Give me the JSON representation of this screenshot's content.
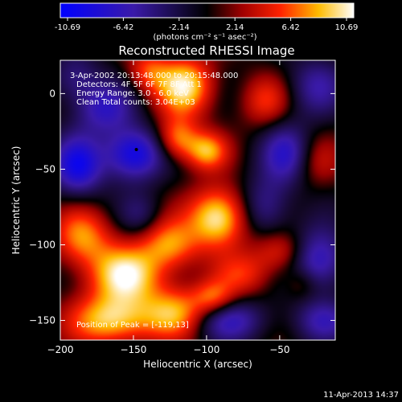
{
  "colorbar": {
    "ticks": [
      "-10.69",
      "-6.42",
      "-2.14",
      "2.14",
      "6.42",
      "10.69"
    ],
    "unit_label": "(photons cm⁻² s⁻¹ asec⁻²)"
  },
  "chart_data": {
    "type": "heatmap",
    "title": "Reconstructed RHESSI Image",
    "xlabel": "Heliocentric X (arcsec)",
    "ylabel": "Heliocentric Y (arcsec)",
    "xlim": [
      -200,
      -12
    ],
    "ylim": [
      -163,
      22
    ],
    "xticks": [
      -200,
      -150,
      -100,
      -50
    ],
    "yticks": [
      0,
      -50,
      -100,
      -150
    ],
    "color_range": [
      -10.69,
      10.69
    ],
    "colormap": "blue-black-red-yellow-white",
    "annotations": [
      "3-Apr-2002 20:13:48.000 to 20:15:48.000",
      "Detectors: 4F 5F 6F 7F 8F Att 1",
      "Energy Range: 3.0 - 6.0 keV",
      "Clean    Total counts: 3.04E+03"
    ],
    "peak_label": "Position of Peak = [-119,13]",
    "peak": [
      -119,
      13
    ],
    "marker": [
      -148,
      -37
    ],
    "blobs": [
      {
        "x": -115,
        "y": 5,
        "sx": 14,
        "sy": 14,
        "a": 9.5
      },
      {
        "x": -120,
        "y": -30,
        "sx": 10,
        "sy": 10,
        "a": 7.0
      },
      {
        "x": -100,
        "y": -38,
        "sx": 10,
        "sy": 9,
        "a": 7.5
      },
      {
        "x": -92,
        "y": -82,
        "sx": 14,
        "sy": 14,
        "a": 10.5
      },
      {
        "x": -125,
        "y": -100,
        "sx": 14,
        "sy": 12,
        "a": 7.0
      },
      {
        "x": -155,
        "y": -120,
        "sx": 18,
        "sy": 14,
        "a": 9.5
      },
      {
        "x": -165,
        "y": -150,
        "sx": 20,
        "sy": 12,
        "a": 9.0
      },
      {
        "x": -120,
        "y": -145,
        "sx": 16,
        "sy": 12,
        "a": 7.5
      },
      {
        "x": -185,
        "y": -95,
        "sx": 14,
        "sy": 14,
        "a": 7.0
      },
      {
        "x": -75,
        "y": -120,
        "sx": 14,
        "sy": 10,
        "a": 4.5
      },
      {
        "x": -95,
        "y": -135,
        "sx": 10,
        "sy": 8,
        "a": 5.5
      },
      {
        "x": -60,
        "y": -5,
        "sx": 12,
        "sy": 12,
        "a": 4.5
      },
      {
        "x": -48,
        "y": -105,
        "sx": 14,
        "sy": 10,
        "a": 5.5
      },
      {
        "x": -25,
        "y": -45,
        "sx": 12,
        "sy": 12,
        "a": 3.0
      },
      {
        "x": -140,
        "y": 15,
        "sx": 10,
        "sy": 10,
        "a": 5.0
      },
      {
        "x": -35,
        "y": -125,
        "sx": 8,
        "sy": 8,
        "a": 3.0
      },
      {
        "x": -150,
        "y": -40,
        "sx": 14,
        "sy": 12,
        "a": -9.5
      },
      {
        "x": -188,
        "y": -48,
        "sx": 12,
        "sy": 14,
        "a": -8.5
      },
      {
        "x": -170,
        "y": -10,
        "sx": 14,
        "sy": 12,
        "a": -6.0
      },
      {
        "x": -25,
        "y": -110,
        "sx": 14,
        "sy": 14,
        "a": -8.0
      },
      {
        "x": -45,
        "y": -40,
        "sx": 12,
        "sy": 14,
        "a": -6.5
      },
      {
        "x": -60,
        "y": -75,
        "sx": 12,
        "sy": 14,
        "a": -5.0
      },
      {
        "x": -85,
        "y": -150,
        "sx": 18,
        "sy": 10,
        "a": -6.0
      },
      {
        "x": -20,
        "y": -150,
        "sx": 14,
        "sy": 10,
        "a": -5.0
      },
      {
        "x": -25,
        "y": 5,
        "sx": 14,
        "sy": 14,
        "a": -4.5
      },
      {
        "x": -190,
        "y": 10,
        "sx": 12,
        "sy": 12,
        "a": -4.0
      },
      {
        "x": -145,
        "y": -80,
        "sx": 10,
        "sy": 10,
        "a": -3.0
      }
    ]
  },
  "footer": {
    "timestamp": "11-Apr-2013 14:37"
  }
}
